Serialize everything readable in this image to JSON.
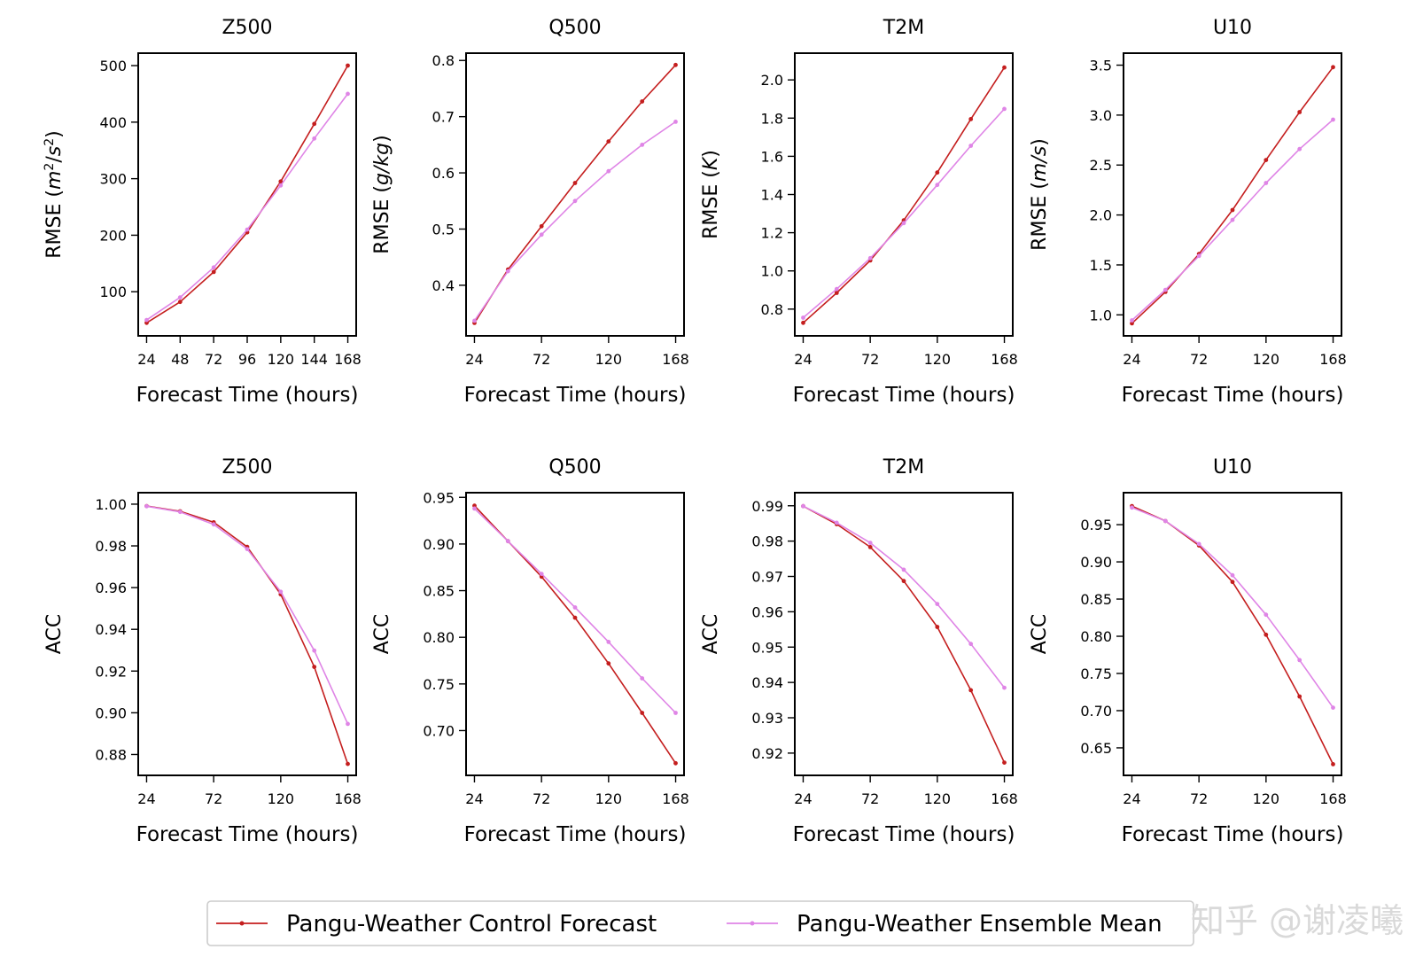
{
  "colors": {
    "control": "#c41e1e",
    "ensemble": "#df85e6"
  },
  "legend": {
    "control_label": "Pangu-Weather Control Forecast",
    "ensemble_label": "Pangu-Weather Ensemble Mean"
  },
  "watermark": "知乎 @谢凌曦",
  "chart_data": [
    {
      "type": "line",
      "title": "Z500",
      "xlabel": "Forecast Time (hours)",
      "ylabel": "RMSE (m²/s²)",
      "ylabel_main": "RMSE (",
      "ylabel_var": "m",
      "ylabel_sup1": "2",
      "ylabel_mid": "/",
      "ylabel_var2": "s",
      "ylabel_sup2": "2",
      "ylabel_end": ")",
      "x": [
        24,
        48,
        72,
        96,
        120,
        144,
        168
      ],
      "xticks": [
        "24",
        "48",
        "72",
        "96",
        "120",
        "144",
        "168"
      ],
      "xtick_values": [
        24,
        48,
        72,
        96,
        120,
        144,
        168
      ],
      "yticks": [
        "100",
        "200",
        "300",
        "400",
        "500"
      ],
      "ytick_values": [
        100,
        200,
        300,
        400,
        500
      ],
      "ylim": [
        22,
        522
      ],
      "series": [
        {
          "name": "Pangu-Weather Control Forecast",
          "values": [
            45,
            82,
            135,
            205,
            295,
            397,
            500
          ]
        },
        {
          "name": "Pangu-Weather Ensemble Mean",
          "values": [
            50,
            90,
            143,
            210,
            288,
            371,
            450
          ]
        }
      ]
    },
    {
      "type": "line",
      "title": "Q500",
      "xlabel": "Forecast Time (hours)",
      "ylabel": "RMSE (g/kg)",
      "ylabel_main": "RMSE (",
      "ylabel_var": "g/kg",
      "ylabel_end": ")",
      "x": [
        24,
        48,
        72,
        96,
        120,
        144,
        168
      ],
      "xticks": [
        "24",
        "72",
        "120",
        "168"
      ],
      "xtick_values": [
        24,
        72,
        120,
        168
      ],
      "yticks": [
        "0.4",
        "0.5",
        "0.6",
        "0.7",
        "0.8"
      ],
      "ytick_values": [
        0.4,
        0.5,
        0.6,
        0.7,
        0.8
      ],
      "ylim": [
        0.31,
        0.813
      ],
      "series": [
        {
          "name": "Pangu-Weather Control Forecast",
          "values": [
            0.333,
            0.428,
            0.505,
            0.582,
            0.656,
            0.727,
            0.792
          ]
        },
        {
          "name": "Pangu-Weather Ensemble Mean",
          "values": [
            0.337,
            0.425,
            0.49,
            0.55,
            0.603,
            0.65,
            0.691
          ]
        }
      ]
    },
    {
      "type": "line",
      "title": "T2M",
      "xlabel": "Forecast Time (hours)",
      "ylabel": "RMSE (K)",
      "ylabel_main": "RMSE (",
      "ylabel_var": "K",
      "ylabel_end": ")",
      "x": [
        24,
        48,
        72,
        96,
        120,
        144,
        168
      ],
      "xticks": [
        "24",
        "72",
        "120",
        "168"
      ],
      "xtick_values": [
        24,
        72,
        120,
        168
      ],
      "yticks": [
        "0.8",
        "1.0",
        "1.2",
        "1.4",
        "1.6",
        "1.8",
        "2.0"
      ],
      "ytick_values": [
        0.8,
        1.0,
        1.2,
        1.4,
        1.6,
        1.8,
        2.0
      ],
      "ylim": [
        0.66,
        2.14
      ],
      "series": [
        {
          "name": "Pangu-Weather Control Forecast",
          "values": [
            0.728,
            0.885,
            1.055,
            1.265,
            1.515,
            1.795,
            2.065
          ]
        },
        {
          "name": "Pangu-Weather Ensemble Mean",
          "values": [
            0.755,
            0.905,
            1.067,
            1.25,
            1.45,
            1.655,
            1.848
          ]
        }
      ]
    },
    {
      "type": "line",
      "title": "U10",
      "xlabel": "Forecast Time (hours)",
      "ylabel": "RMSE (m/s)",
      "ylabel_main": "RMSE (",
      "ylabel_var": "m/s",
      "ylabel_end": ")",
      "x": [
        24,
        48,
        72,
        96,
        120,
        144,
        168
      ],
      "xticks": [
        "24",
        "72",
        "120",
        "168"
      ],
      "xtick_values": [
        24,
        72,
        120,
        168
      ],
      "yticks": [
        "1.0",
        "1.5",
        "2.0",
        "2.5",
        "3.0",
        "3.5"
      ],
      "ytick_values": [
        1.0,
        1.5,
        2.0,
        2.5,
        3.0,
        3.5
      ],
      "ylim": [
        0.79,
        3.62
      ],
      "series": [
        {
          "name": "Pangu-Weather Control Forecast",
          "values": [
            0.915,
            1.23,
            1.61,
            2.05,
            2.55,
            3.03,
            3.48
          ]
        },
        {
          "name": "Pangu-Weather Ensemble Mean",
          "values": [
            0.945,
            1.25,
            1.59,
            1.95,
            2.32,
            2.66,
            2.955
          ]
        }
      ]
    },
    {
      "type": "line",
      "title": "Z500",
      "xlabel": "Forecast Time (hours)",
      "ylabel": "ACC",
      "x": [
        24,
        48,
        72,
        96,
        120,
        144,
        168
      ],
      "xticks": [
        "24",
        "72",
        "120",
        "168"
      ],
      "xtick_values": [
        24,
        72,
        120,
        168
      ],
      "yticks": [
        "0.88",
        "0.90",
        "0.92",
        "0.94",
        "0.96",
        "0.98",
        "1.00"
      ],
      "ytick_values": [
        0.88,
        0.9,
        0.92,
        0.94,
        0.96,
        0.98,
        1.0
      ],
      "ylim": [
        0.87,
        1.0055
      ],
      "series": [
        {
          "name": "Pangu-Weather Control Forecast",
          "values": [
            0.9991,
            0.9966,
            0.9913,
            0.9795,
            0.9568,
            0.922,
            0.8755
          ]
        },
        {
          "name": "Pangu-Weather Ensemble Mean",
          "values": [
            0.999,
            0.9963,
            0.9903,
            0.9785,
            0.958,
            0.9298,
            0.8947
          ]
        }
      ]
    },
    {
      "type": "line",
      "title": "Q500",
      "xlabel": "Forecast Time (hours)",
      "ylabel": "ACC",
      "x": [
        24,
        48,
        72,
        96,
        120,
        144,
        168
      ],
      "xticks": [
        "24",
        "72",
        "120",
        "168"
      ],
      "xtick_values": [
        24,
        72,
        120,
        168
      ],
      "yticks": [
        "0.70",
        "0.75",
        "0.80",
        "0.85",
        "0.90",
        "0.95"
      ],
      "ytick_values": [
        0.7,
        0.75,
        0.8,
        0.85,
        0.9,
        0.95
      ],
      "ylim": [
        0.652,
        0.955
      ],
      "series": [
        {
          "name": "Pangu-Weather Control Forecast",
          "values": [
            0.941,
            0.903,
            0.865,
            0.821,
            0.772,
            0.719,
            0.665
          ]
        },
        {
          "name": "Pangu-Weather Ensemble Mean",
          "values": [
            0.938,
            0.903,
            0.868,
            0.832,
            0.795,
            0.756,
            0.719
          ]
        }
      ]
    },
    {
      "type": "line",
      "title": "T2M",
      "xlabel": "Forecast Time (hours)",
      "ylabel": "ACC",
      "x": [
        24,
        48,
        72,
        96,
        120,
        144,
        168
      ],
      "xticks": [
        "24",
        "72",
        "120",
        "168"
      ],
      "xtick_values": [
        24,
        72,
        120,
        168
      ],
      "yticks": [
        "0.92",
        "0.93",
        "0.94",
        "0.95",
        "0.96",
        "0.97",
        "0.98",
        "0.99"
      ],
      "ytick_values": [
        0.92,
        0.93,
        0.94,
        0.95,
        0.96,
        0.97,
        0.98,
        0.99
      ],
      "ylim": [
        0.9137,
        0.9937
      ],
      "series": [
        {
          "name": "Pangu-Weather Control Forecast",
          "values": [
            0.9899,
            0.9848,
            0.9783,
            0.9687,
            0.9557,
            0.9378,
            0.9173
          ]
        },
        {
          "name": "Pangu-Weather Ensemble Mean",
          "values": [
            0.9899,
            0.9852,
            0.9795,
            0.9719,
            0.9622,
            0.9509,
            0.9385
          ]
        }
      ]
    },
    {
      "type": "line",
      "title": "U10",
      "xlabel": "Forecast Time (hours)",
      "ylabel": "ACC",
      "x": [
        24,
        48,
        72,
        96,
        120,
        144,
        168
      ],
      "xticks": [
        "24",
        "72",
        "120",
        "168"
      ],
      "xtick_values": [
        24,
        72,
        120,
        168
      ],
      "yticks": [
        "0.65",
        "0.70",
        "0.75",
        "0.80",
        "0.85",
        "0.90",
        "0.95"
      ],
      "ytick_values": [
        0.65,
        0.7,
        0.75,
        0.8,
        0.85,
        0.9,
        0.95
      ],
      "ylim": [
        0.613,
        0.993
      ],
      "series": [
        {
          "name": "Pangu-Weather Control Forecast",
          "values": [
            0.975,
            0.955,
            0.922,
            0.873,
            0.802,
            0.719,
            0.628
          ]
        },
        {
          "name": "Pangu-Weather Ensemble Mean",
          "values": [
            0.973,
            0.955,
            0.924,
            0.882,
            0.829,
            0.768,
            0.704
          ]
        }
      ]
    }
  ]
}
